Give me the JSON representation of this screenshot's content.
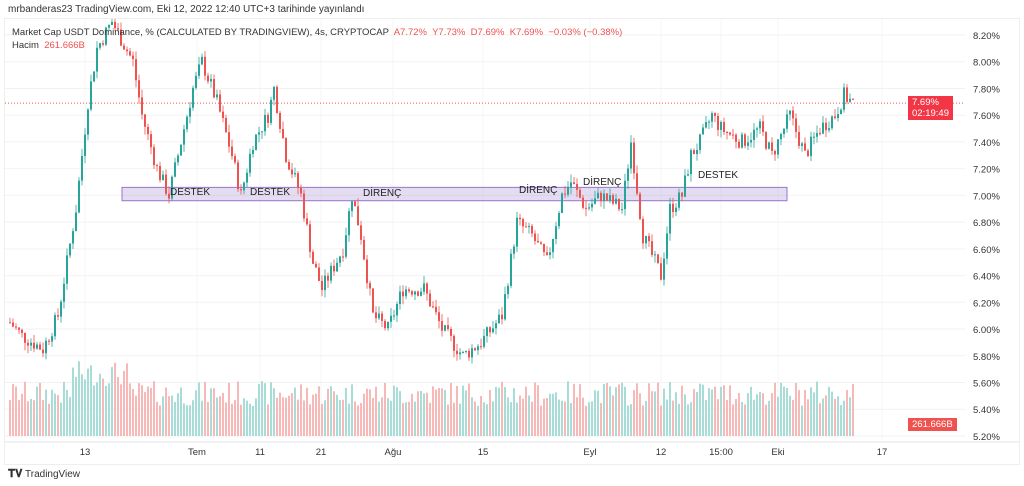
{
  "header": {
    "published": "mrbanderas23 TradingView.com, Eki 12, 2022 12:40 UTC+3 tarihinde yayınlandı"
  },
  "legend": {
    "symbol": "Market Cap USDT Dominance, % (CALCULATED BY TRADINGVIEW), 4s, CRYPTOCAP",
    "open": "A7.72%",
    "high": "Y7.73%",
    "low": "D7.69%",
    "close": "K7.69%",
    "change": "−0.03% (−0.38%)",
    "volume_label": "Hacim",
    "volume_value": "261.666B"
  },
  "price_tag": {
    "price": "7.69%",
    "countdown": "02:19:49"
  },
  "volume_tag": "261.666B",
  "annotations": [
    "DESTEK",
    "DESTEK",
    "DİRENÇ",
    "DİRENÇ",
    "DİRENÇ",
    "DESTEK"
  ],
  "footer": {
    "brand": "TradingView"
  },
  "colors": {
    "up": "#26a69a",
    "down": "#ef5350",
    "zone": "#b39ddb"
  },
  "chart_data": {
    "type": "candlestick",
    "yticks": [
      "8.20%",
      "8.00%",
      "7.80%",
      "7.60%",
      "7.40%",
      "7.20%",
      "7.00%",
      "6.80%",
      "6.60%",
      "6.40%",
      "6.20%",
      "6.00%",
      "5.80%",
      "5.60%",
      "5.40%",
      "5.20%"
    ],
    "xticks": [
      "13",
      "Tem",
      "11",
      "21",
      "Ağu",
      "15",
      "Eyl",
      "12",
      "15:00",
      "Eki",
      "17"
    ],
    "ylim": [
      5.2,
      8.2
    ],
    "zone": [
      6.96,
      7.06
    ],
    "path": [
      [
        0,
        6.05
      ],
      [
        4,
        5.95
      ],
      [
        11,
        5.85
      ],
      [
        16,
        6.1
      ],
      [
        22,
        6.9
      ],
      [
        26,
        7.7
      ],
      [
        29,
        8.1
      ],
      [
        34,
        8.3
      ],
      [
        41,
        8.0
      ],
      [
        44,
        7.6
      ],
      [
        49,
        7.2
      ],
      [
        53,
        7.0
      ],
      [
        56,
        7.3
      ],
      [
        61,
        7.8
      ],
      [
        64,
        8.0
      ],
      [
        69,
        7.7
      ],
      [
        74,
        7.3
      ],
      [
        77,
        7.0
      ],
      [
        81,
        7.4
      ],
      [
        86,
        7.6
      ],
      [
        88,
        7.8
      ],
      [
        92,
        7.3
      ],
      [
        97,
        7.0
      ],
      [
        101,
        6.5
      ],
      [
        104,
        6.3
      ],
      [
        111,
        6.6
      ],
      [
        114,
        7.0
      ],
      [
        117,
        6.7
      ],
      [
        121,
        6.1
      ],
      [
        126,
        6.0
      ],
      [
        131,
        6.3
      ],
      [
        138,
        6.3
      ],
      [
        144,
        6.0
      ],
      [
        151,
        5.8
      ],
      [
        157,
        5.9
      ],
      [
        164,
        6.1
      ],
      [
        169,
        6.8
      ],
      [
        174,
        6.7
      ],
      [
        179,
        6.5
      ],
      [
        184,
        7.0
      ],
      [
        187,
        7.1
      ],
      [
        192,
        6.9
      ],
      [
        197,
        7.0
      ],
      [
        204,
        6.9
      ],
      [
        207,
        7.4
      ],
      [
        211,
        6.7
      ],
      [
        217,
        6.4
      ],
      [
        220,
        6.9
      ],
      [
        224,
        7.0
      ],
      [
        227,
        7.3
      ],
      [
        230,
        7.4
      ],
      [
        234,
        7.6
      ],
      [
        237,
        7.5
      ],
      [
        244,
        7.4
      ],
      [
        250,
        7.5
      ],
      [
        254,
        7.3
      ],
      [
        260,
        7.6
      ],
      [
        265,
        7.3
      ],
      [
        270,
        7.5
      ],
      [
        275,
        7.6
      ],
      [
        278,
        7.75
      ],
      [
        281,
        7.69
      ]
    ]
  }
}
